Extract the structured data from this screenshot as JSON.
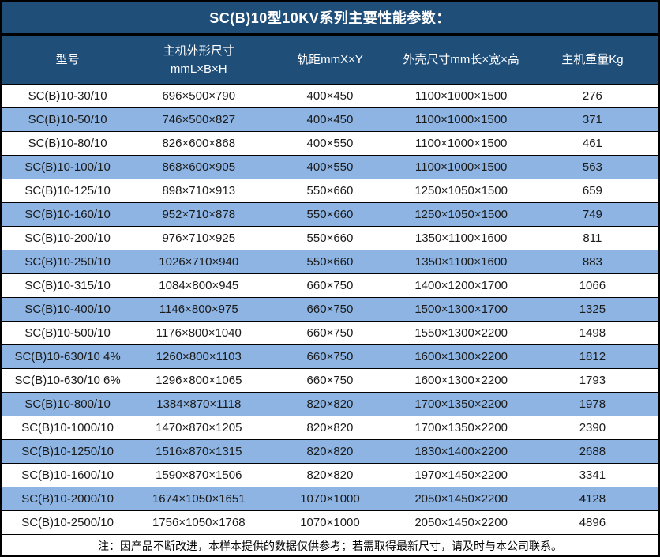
{
  "title": "SC(B)10型10KV系列主要性能参数：",
  "table": {
    "columns": [
      {
        "label": "型号"
      },
      {
        "label": "主机外形尺寸",
        "label2": "mmL×B×H"
      },
      {
        "label": "轨距mmX×Y"
      },
      {
        "label": "外壳尺寸mm长×宽×高"
      },
      {
        "label": "主机重量Kg"
      }
    ],
    "rows": [
      [
        "SC(B)10-30/10",
        "696×500×790",
        "400×450",
        "1100×1000×1500",
        "276"
      ],
      [
        "SC(B)10-50/10",
        "746×500×827",
        "400×450",
        "1100×1000×1500",
        "371"
      ],
      [
        "SC(B)10-80/10",
        "826×600×868",
        "400×550",
        "1100×1000×1500",
        "461"
      ],
      [
        "SC(B)10-100/10",
        "868×600×905",
        "400×550",
        "1100×1000×1500",
        "563"
      ],
      [
        "SC(B)10-125/10",
        "898×710×913",
        "550×660",
        "1250×1050×1500",
        "659"
      ],
      [
        "SC(B)10-160/10",
        "952×710×878",
        "550×660",
        "1250×1050×1500",
        "749"
      ],
      [
        "SC(B)10-200/10",
        "976×710×925",
        "550×660",
        "1350×1100×1600",
        "811"
      ],
      [
        "SC(B)10-250/10",
        "1026×710×940",
        "550×660",
        "1350×1100×1600",
        "883"
      ],
      [
        "SC(B)10-315/10",
        "1084×800×945",
        "660×750",
        "1400×1200×1700",
        "1066"
      ],
      [
        "SC(B)10-400/10",
        "1146×800×975",
        "660×750",
        "1500×1300×1700",
        "1325"
      ],
      [
        "SC(B)10-500/10",
        "1176×800×1040",
        "660×750",
        "1550×1300×2200",
        "1498"
      ],
      [
        "SC(B)10-630/10 4%",
        "1260×800×1103",
        "660×750",
        "1600×1300×2200",
        "1812"
      ],
      [
        "SC(B)10-630/10 6%",
        "1296×800×1065",
        "660×750",
        "1600×1300×2200",
        "1793"
      ],
      [
        "SC(B)10-800/10",
        "1384×870×1118",
        "820×820",
        "1700×1350×2200",
        "1978"
      ],
      [
        "SC(B)10-1000/10",
        "1470×870×1205",
        "820×820",
        "1700×1350×2200",
        "2390"
      ],
      [
        "SC(B)10-1250/10",
        "1516×870×1315",
        "820×820",
        "1830×1400×2200",
        "2688"
      ],
      [
        "SC(B)10-1600/10",
        "1590×870×1506",
        "820×820",
        "1970×1450×2200",
        "3341"
      ],
      [
        "SC(B)10-2000/10",
        "1674×1050×1651",
        "1070×1000",
        "2050×1450×2200",
        "4128"
      ],
      [
        "SC(B)10-2500/10",
        "1756×1050×1768",
        "1070×1000",
        "2050×1450×2200",
        "4896"
      ]
    ]
  },
  "note": "注：因产品不断改进，本样本提供的数据仅供参考；若需取得最新尺寸，请及时与本公司联系。",
  "colors": {
    "header_bg": "#1F4E79",
    "header_text": "#FFFFFF",
    "row_bg": "#FFFFFF",
    "row_alt_bg": "#8DB4E2",
    "border": "#000000",
    "text": "#1A1A1A"
  }
}
